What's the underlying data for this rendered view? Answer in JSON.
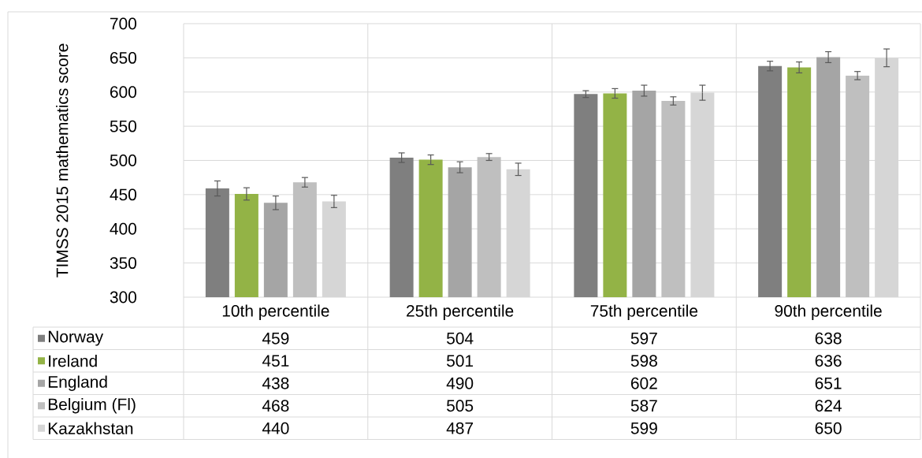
{
  "chart_data": {
    "type": "bar",
    "ylabel": "TIMSS 2015 mathematics score",
    "categories": [
      "10th percentile",
      "25th percentile",
      "75th percentile",
      "90th percentile"
    ],
    "series": [
      {
        "name": "Norway",
        "color": "#7f7f7f",
        "values": [
          459,
          504,
          597,
          638
        ],
        "errors": [
          11,
          7,
          5,
          7
        ]
      },
      {
        "name": "Ireland",
        "color": "#93b346",
        "values": [
          451,
          501,
          598,
          636
        ],
        "errors": [
          9,
          7,
          7,
          8
        ]
      },
      {
        "name": "England",
        "color": "#a5a5a5",
        "values": [
          438,
          490,
          602,
          651
        ],
        "errors": [
          10,
          8,
          8,
          8
        ]
      },
      {
        "name": "Belgium (Fl)",
        "color": "#bfbfbf",
        "values": [
          468,
          505,
          587,
          624
        ],
        "errors": [
          7,
          5,
          6,
          6
        ]
      },
      {
        "name": "Kazakhstan",
        "color": "#d6d6d6",
        "values": [
          440,
          487,
          599,
          650
        ],
        "errors": [
          9,
          9,
          11,
          13
        ]
      }
    ],
    "ylim": [
      300,
      700
    ],
    "yticks": [
      300,
      350,
      400,
      450,
      500,
      550,
      600,
      650,
      700
    ],
    "grid": "y",
    "legend": "bottom",
    "data_labels": true
  }
}
